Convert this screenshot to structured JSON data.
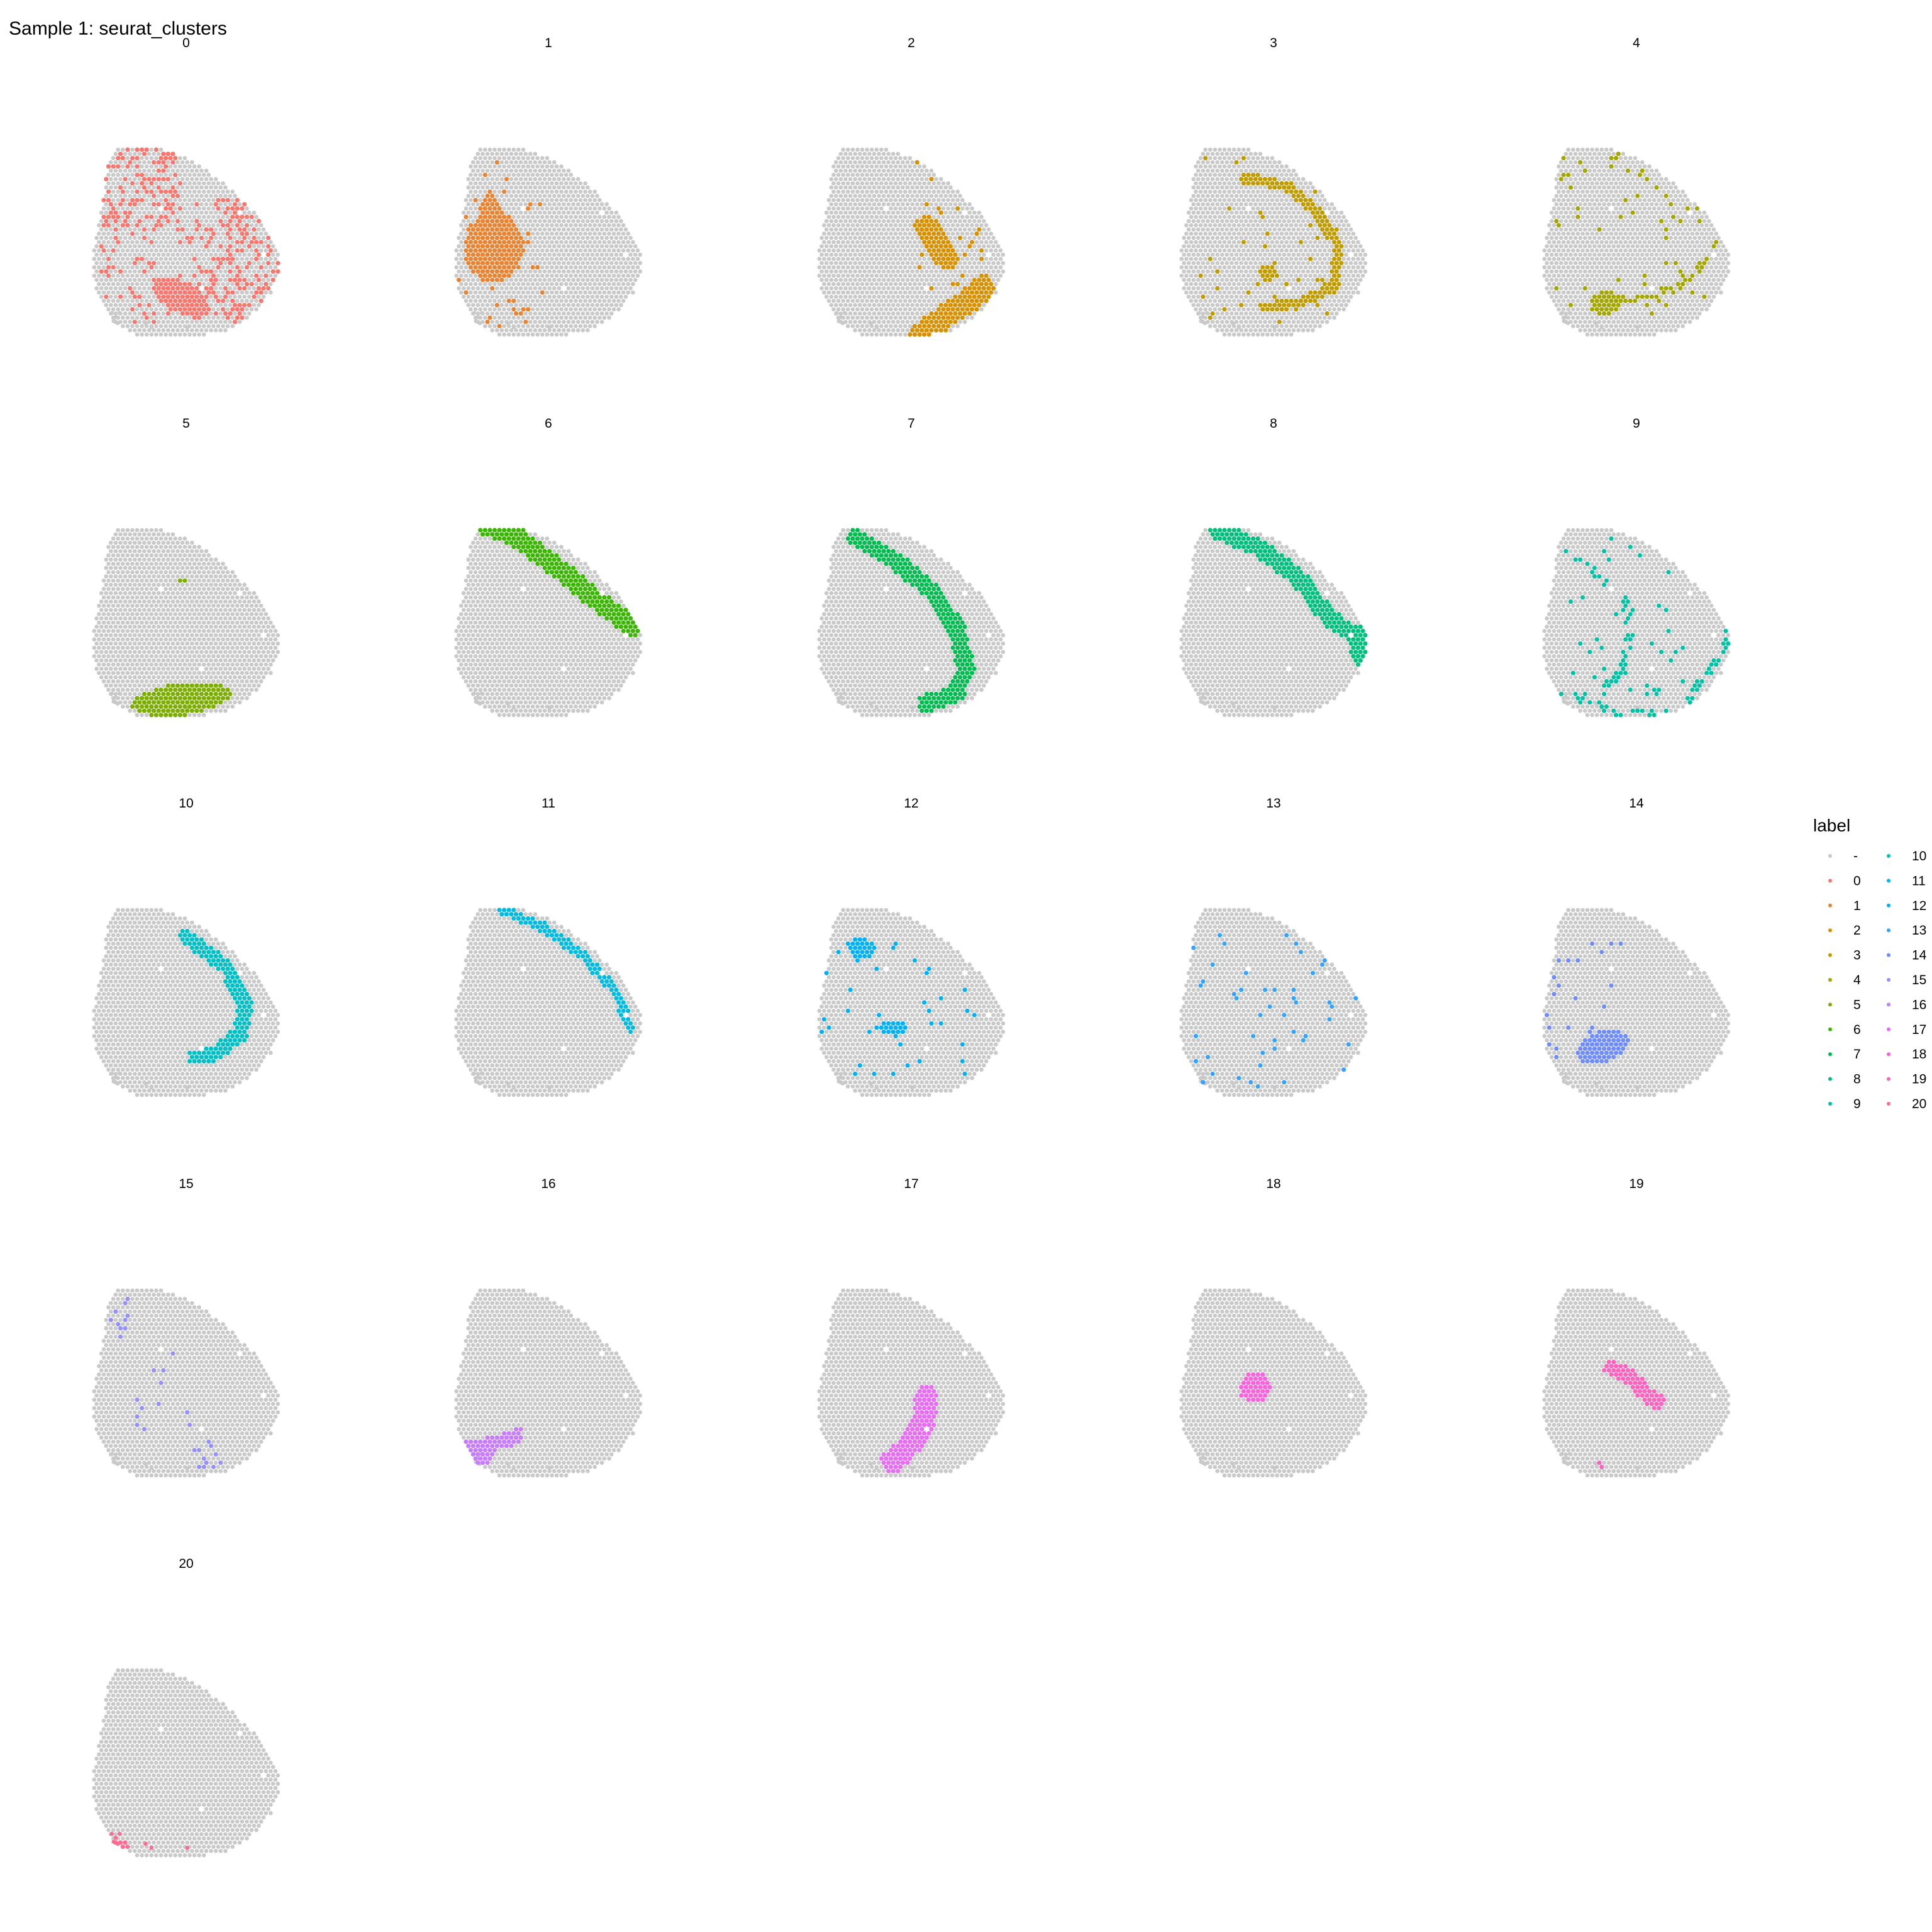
{
  "title": "Sample 1: seurat_clusters",
  "legend": {
    "title": "label",
    "entries": [
      {
        "label": "-",
        "color": "#C9C9C9"
      },
      {
        "label": "0",
        "color": "#F8766D"
      },
      {
        "label": "1",
        "color": "#EA8331"
      },
      {
        "label": "2",
        "color": "#D89000"
      },
      {
        "label": "3",
        "color": "#C09B00"
      },
      {
        "label": "4",
        "color": "#A3A500"
      },
      {
        "label": "5",
        "color": "#7CAE00"
      },
      {
        "label": "6",
        "color": "#39B600"
      },
      {
        "label": "7",
        "color": "#00BB4E"
      },
      {
        "label": "8",
        "color": "#00BF7D"
      },
      {
        "label": "9",
        "color": "#00C1A3"
      },
      {
        "label": "10",
        "color": "#00BFC4"
      },
      {
        "label": "11",
        "color": "#00BAE0"
      },
      {
        "label": "12",
        "color": "#00B0F6"
      },
      {
        "label": "13",
        "color": "#35A2FF"
      },
      {
        "label": "14",
        "color": "#6F8CFF"
      },
      {
        "label": "15",
        "color": "#9590FF"
      },
      {
        "label": "16",
        "color": "#C77CFF"
      },
      {
        "label": "17",
        "color": "#E76BF3"
      },
      {
        "label": "18",
        "color": "#FA62DB"
      },
      {
        "label": "19",
        "color": "#FF62BC"
      },
      {
        "label": "20",
        "color": "#FF6C91"
      }
    ]
  },
  "chart_data": {
    "type": "scatter",
    "title": "Sample 1: seurat_clusters",
    "facet_by": "seurat_clusters",
    "facets": [
      "0",
      "1",
      "2",
      "3",
      "4",
      "5",
      "6",
      "7",
      "8",
      "9",
      "10",
      "11",
      "12",
      "13",
      "14",
      "15",
      "16",
      "17",
      "18",
      "19",
      "20"
    ],
    "background_label": "-",
    "background_color": "#C9C9C9",
    "grid": false,
    "axes_visible": false,
    "legend_position": "right",
    "legend_columns": 2,
    "tissue_outline": [
      [
        0.12,
        0.06
      ],
      [
        0.32,
        0.05
      ],
      [
        0.46,
        0.1
      ],
      [
        0.6,
        0.18
      ],
      [
        0.72,
        0.28
      ],
      [
        0.84,
        0.4
      ],
      [
        0.92,
        0.52
      ],
      [
        0.95,
        0.64
      ],
      [
        0.9,
        0.78
      ],
      [
        0.8,
        0.9
      ],
      [
        0.65,
        0.98
      ],
      [
        0.42,
        1.0
      ],
      [
        0.22,
        0.99
      ],
      [
        0.1,
        0.92
      ],
      [
        0.02,
        0.78
      ],
      [
        0.0,
        0.6
      ],
      [
        0.03,
        0.44
      ],
      [
        0.06,
        0.3
      ],
      [
        0.08,
        0.15
      ]
    ],
    "empty_spots": [
      [
        0.35,
        0.35
      ],
      [
        0.74,
        0.37
      ],
      [
        0.86,
        0.59
      ],
      [
        0.55,
        0.75
      ]
    ],
    "clusters": {
      "0": {
        "type": "scatter_spread",
        "n": 360,
        "regions": [
          [
            0.05,
            0.02,
            0.45,
            0.45
          ],
          [
            0.0,
            0.35,
            0.95,
            0.95
          ],
          [
            0.5,
            0.3,
            0.95,
            0.9
          ]
        ],
        "clump": [
          0.45,
          0.8,
          0.16,
          0.08,
          0.5
        ]
      },
      "1": {
        "type": "clump",
        "ellipses": [
          [
            0.2,
            0.55,
            0.15,
            0.18,
            0
          ],
          [
            0.18,
            0.35,
            0.05,
            0.08,
            0
          ]
        ],
        "scatter": [
          [
            0.0,
            0.1,
            0.45,
            0.95,
            40
          ]
        ]
      },
      "2": {
        "type": "band",
        "paths": [
          [
            [
              0.52,
              0.99
            ],
            [
              0.64,
              0.9
            ],
            [
              0.76,
              0.82
            ],
            [
              0.84,
              0.75
            ]
          ],
          [
            [
              0.55,
              0.45
            ],
            [
              0.62,
              0.55
            ],
            [
              0.65,
              0.6
            ]
          ]
        ],
        "width": 0.06,
        "scatter": [
          [
            0.5,
            0.0,
            0.98,
            0.8,
            30
          ]
        ]
      },
      "3": {
        "type": "arc",
        "paths": [
          [
            [
              0.35,
              0.2
            ],
            [
              0.55,
              0.25
            ],
            [
              0.7,
              0.38
            ],
            [
              0.8,
              0.55
            ],
            [
              0.78,
              0.75
            ],
            [
              0.6,
              0.83
            ],
            [
              0.42,
              0.85
            ]
          ]
        ],
        "width": 0.025,
        "clumps": [
          [
            0.36,
            0.21,
            0.07,
            0.04,
            0
          ],
          [
            0.45,
            0.68,
            0.05,
            0.04,
            0
          ]
        ],
        "scatter": [
          [
            0.0,
            0.1,
            0.9,
            0.95,
            45
          ]
        ]
      },
      "4": {
        "type": "scatter_path",
        "clumps": [
          [
            0.32,
            0.83,
            0.08,
            0.06,
            0
          ]
        ],
        "paths": [
          [
            [
              0.32,
              0.83
            ],
            [
              0.5,
              0.8
            ],
            [
              0.7,
              0.75
            ],
            [
              0.82,
              0.62
            ]
          ]
        ],
        "width": 0.02,
        "scatter": [
          [
            0.05,
            0.0,
            0.9,
            0.9,
            60
          ]
        ]
      },
      "5": {
        "type": "clump",
        "ellipses": [
          [
            0.45,
            0.91,
            0.25,
            0.08,
            -0.12
          ]
        ],
        "scatter": [
          [
            0.42,
            0.3,
            0.48,
            0.33,
            3
          ]
        ]
      },
      "6": {
        "type": "band",
        "paths": [
          [
            [
              0.1,
              0.02
            ],
            [
              0.32,
              0.1
            ],
            [
              0.52,
              0.25
            ],
            [
              0.7,
              0.4
            ],
            [
              0.9,
              0.55
            ]
          ]
        ],
        "width": 0.05
      },
      "7": {
        "type": "band",
        "paths": [
          [
            [
              0.2,
              0.1
            ],
            [
              0.4,
              0.22
            ],
            [
              0.58,
              0.37
            ],
            [
              0.7,
              0.55
            ],
            [
              0.75,
              0.75
            ],
            [
              0.7,
              0.88
            ],
            [
              0.55,
              0.93
            ]
          ]
        ],
        "width": 0.045
      },
      "8": {
        "type": "band",
        "paths": [
          [
            [
              0.2,
              0.07
            ],
            [
              0.4,
              0.15
            ],
            [
              0.6,
              0.3
            ],
            [
              0.75,
              0.5
            ],
            [
              0.9,
              0.6
            ],
            [
              0.92,
              0.72
            ]
          ]
        ],
        "width": 0.045,
        "clump": [
          0.92,
          0.62,
          0.05,
          0.12,
          0.3
        ]
      },
      "9": {
        "type": "scatter_path",
        "paths": [
          [
            [
              0.18,
              0.2
            ],
            [
              0.42,
              0.4
            ],
            [
              0.45,
              0.55
            ],
            [
              0.4,
              0.75
            ],
            [
              0.3,
              0.88
            ]
          ],
          [
            [
              0.1,
              0.88
            ],
            [
              0.4,
              0.98
            ],
            [
              0.7,
              0.97
            ],
            [
              0.95,
              0.6
            ]
          ]
        ],
        "width": 0.02,
        "scatter": [
          [
            0.1,
            0.0,
            0.98,
            0.95,
            40
          ]
        ]
      },
      "10": {
        "type": "band",
        "paths": [
          [
            [
              0.48,
              0.2
            ],
            [
              0.68,
              0.35
            ],
            [
              0.77,
              0.52
            ],
            [
              0.75,
              0.68
            ],
            [
              0.62,
              0.78
            ],
            [
              0.52,
              0.8
            ]
          ]
        ],
        "width": 0.04
      },
      "11": {
        "type": "band",
        "paths": [
          [
            [
              0.24,
              0.06
            ],
            [
              0.45,
              0.15
            ],
            [
              0.66,
              0.3
            ],
            [
              0.82,
              0.48
            ],
            [
              0.88,
              0.65
            ]
          ]
        ],
        "width": 0.025
      },
      "12": {
        "type": "clump",
        "ellipses": [
          [
            0.22,
            0.25,
            0.07,
            0.05,
            0
          ],
          [
            0.38,
            0.65,
            0.07,
            0.04,
            0
          ],
          [
            0.95,
            0.52,
            0.03,
            0.05,
            0
          ]
        ],
        "scatter": [
          [
            0.0,
            0.2,
            0.8,
            0.9,
            40
          ]
        ]
      },
      "13": {
        "type": "scatter_spread",
        "n": 50,
        "regions": [
          [
            0.0,
            0.1,
            0.98,
            0.95
          ]
        ]
      },
      "14": {
        "type": "clump",
        "ellipses": [
          [
            0.3,
            0.75,
            0.14,
            0.08,
            -0.3
          ]
        ],
        "scatter": [
          [
            0.0,
            0.2,
            0.4,
            0.85,
            25
          ],
          [
            0.95,
            0.4,
            0.98,
            0.45,
            2
          ]
        ]
      },
      "15": {
        "type": "scatter_spread",
        "n": 35,
        "regions": [
          [
            0.08,
            0.0,
            0.2,
            0.3
          ],
          [
            0.15,
            0.3,
            0.5,
            0.85
          ],
          [
            0.5,
            0.8,
            0.65,
            0.95
          ]
        ]
      },
      "16": {
        "type": "clump",
        "ellipses": [
          [
            0.1,
            0.88,
            0.1,
            0.07,
            0
          ],
          [
            0.22,
            0.82,
            0.14,
            0.04,
            -0.2
          ]
        ],
        "scatter": [
          [
            0.3,
            0.75,
            0.35,
            0.78,
            4
          ]
        ]
      },
      "17": {
        "type": "band",
        "paths": [
          [
            [
              0.38,
              0.92
            ],
            [
              0.48,
              0.82
            ],
            [
              0.54,
              0.7
            ],
            [
              0.55,
              0.6
            ]
          ]
        ],
        "width": 0.06
      },
      "18": {
        "type": "clump",
        "ellipses": [
          [
            0.38,
            0.55,
            0.08,
            0.08,
            0
          ]
        ]
      },
      "19": {
        "type": "band",
        "paths": [
          [
            [
              0.35,
              0.45
            ],
            [
              0.45,
              0.5
            ],
            [
              0.52,
              0.58
            ],
            [
              0.58,
              0.62
            ]
          ]
        ],
        "width": 0.04,
        "scatter": [
          [
            0.28,
            0.92,
            0.31,
            0.96,
            4
          ]
        ]
      },
      "20": {
        "type": "clump",
        "ellipses": [
          [
            0.13,
            0.95,
            0.06,
            0.04,
            0
          ]
        ]
      }
    }
  }
}
